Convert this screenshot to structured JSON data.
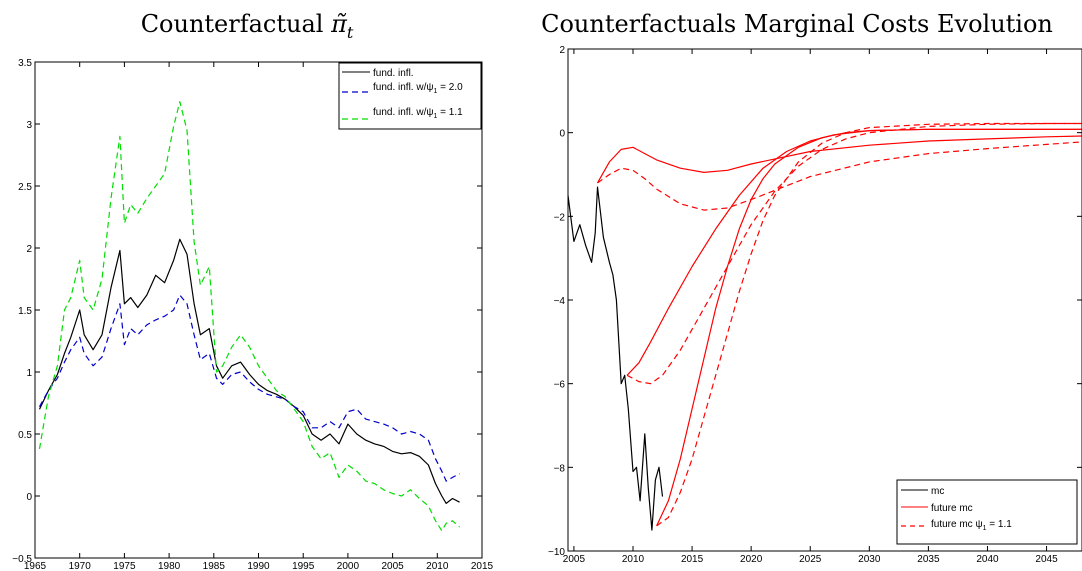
{
  "chart_data": [
    {
      "type": "line",
      "title": "Counterfactual π̃t",
      "xlabel": "",
      "ylabel": "",
      "xlim": [
        1965,
        2015
      ],
      "ylim": [
        -0.5,
        3.5
      ],
      "xticks": [
        1965,
        1970,
        1975,
        1980,
        1985,
        1990,
        1995,
        2000,
        2005,
        2010,
        2015
      ],
      "yticks": [
        -0.5,
        0,
        0.5,
        1,
        1.5,
        2,
        2.5,
        3,
        3.5
      ],
      "xtick_labels": [
        "1965",
        "1970",
        "1975",
        "1980",
        "1985",
        "1990",
        "1995",
        "2000",
        "2005",
        "2010",
        "2015"
      ],
      "ytick_labels": [
        "−0.5",
        "0",
        "0.5",
        "1",
        "1.5",
        "2",
        "2.5",
        "3",
        "3.5"
      ],
      "grid": false,
      "legend_position": "top-right",
      "series": [
        {
          "name": "fund. infl.",
          "color": "#000000",
          "dash": "solid",
          "x": [
            1965.5,
            1966.5,
            1967.5,
            1968.3,
            1969,
            1970,
            1970.5,
            1971.5,
            1972.5,
            1973.5,
            1974.5,
            1975,
            1975.7,
            1976.5,
            1977.5,
            1978.5,
            1979.5,
            1980.5,
            1981.2,
            1982,
            1982.8,
            1983.5,
            1984.5,
            1985.3,
            1986,
            1987,
            1988,
            1989,
            1990,
            1991,
            1992,
            1993,
            1994,
            1995,
            1996,
            1997,
            1998,
            1999,
            2000,
            2001,
            2002,
            2003,
            2004,
            2005,
            2006,
            2007,
            2008,
            2009,
            2009.8,
            2010.5,
            2011,
            2011.7,
            2012.5
          ],
          "y": [
            0.7,
            0.85,
            0.98,
            1.15,
            1.28,
            1.5,
            1.3,
            1.18,
            1.3,
            1.68,
            1.98,
            1.55,
            1.6,
            1.52,
            1.62,
            1.78,
            1.72,
            1.9,
            2.07,
            1.95,
            1.55,
            1.3,
            1.35,
            1.05,
            0.95,
            1.05,
            1.08,
            0.98,
            0.9,
            0.85,
            0.82,
            0.78,
            0.72,
            0.65,
            0.5,
            0.45,
            0.5,
            0.42,
            0.58,
            0.5,
            0.45,
            0.42,
            0.4,
            0.36,
            0.34,
            0.35,
            0.32,
            0.25,
            0.1,
            0.0,
            -0.06,
            -0.02,
            -0.05
          ]
        },
        {
          "name": "fund. infl. w/ψ1 = 2.0",
          "color": "#0000cc",
          "dash": "dashed",
          "x": [
            1965.5,
            1966.5,
            1967.5,
            1968.3,
            1969,
            1970,
            1970.5,
            1971.5,
            1972.5,
            1973.5,
            1974.5,
            1975,
            1975.7,
            1976.5,
            1977.5,
            1978.5,
            1979.5,
            1980.5,
            1981.2,
            1982,
            1982.8,
            1983.5,
            1984.5,
            1985.3,
            1986,
            1987,
            1988,
            1989,
            1990,
            1991,
            1992,
            1993,
            1994,
            1995,
            1996,
            1997,
            1998,
            1999,
            2000,
            2001,
            2002,
            2003,
            2004,
            2005,
            2006,
            2007,
            2008,
            2009,
            2009.8,
            2010.5,
            2011,
            2011.7,
            2012.5
          ],
          "y": [
            0.72,
            0.85,
            0.95,
            1.08,
            1.18,
            1.28,
            1.15,
            1.05,
            1.12,
            1.35,
            1.55,
            1.22,
            1.35,
            1.3,
            1.38,
            1.42,
            1.45,
            1.5,
            1.62,
            1.55,
            1.3,
            1.1,
            1.15,
            0.95,
            0.9,
            0.98,
            1.0,
            0.92,
            0.86,
            0.82,
            0.8,
            0.78,
            0.72,
            0.68,
            0.55,
            0.55,
            0.6,
            0.55,
            0.68,
            0.7,
            0.62,
            0.6,
            0.58,
            0.55,
            0.5,
            0.52,
            0.5,
            0.45,
            0.3,
            0.2,
            0.12,
            0.15,
            0.18
          ]
        },
        {
          "name": "fund. infl. w/ψ1 = 1.1",
          "color": "#00dd00",
          "dash": "dashed",
          "x": [
            1965.5,
            1966.5,
            1967.5,
            1968.3,
            1969,
            1970,
            1970.5,
            1971.5,
            1972.5,
            1973.5,
            1974.5,
            1975,
            1975.7,
            1976.5,
            1977.5,
            1978.5,
            1979.5,
            1980.5,
            1981.2,
            1982,
            1982.8,
            1983.5,
            1984.5,
            1985.3,
            1986,
            1987,
            1988,
            1989,
            1990,
            1991,
            1992,
            1993,
            1994,
            1995,
            1996,
            1997,
            1998,
            1999,
            2000,
            2001,
            2002,
            2003,
            2004,
            2005,
            2006,
            2007,
            2008,
            2009,
            2009.8,
            2010.5,
            2011,
            2011.7,
            2012.5
          ],
          "y": [
            0.38,
            0.8,
            1.05,
            1.5,
            1.6,
            1.9,
            1.6,
            1.5,
            1.75,
            2.4,
            2.9,
            2.2,
            2.35,
            2.28,
            2.4,
            2.5,
            2.6,
            2.98,
            3.18,
            2.95,
            2.05,
            1.7,
            1.85,
            1.0,
            1.05,
            1.2,
            1.3,
            1.2,
            1.05,
            0.95,
            0.85,
            0.8,
            0.7,
            0.6,
            0.4,
            0.3,
            0.35,
            0.15,
            0.25,
            0.2,
            0.12,
            0.1,
            0.05,
            0.02,
            0.0,
            0.05,
            -0.02,
            -0.08,
            -0.2,
            -0.28,
            -0.22,
            -0.2,
            -0.25
          ]
        }
      ]
    },
    {
      "type": "line",
      "title": "Counterfactuals Marginal Costs Evolution",
      "xlabel": "",
      "ylabel": "",
      "xlim": [
        2004.5,
        2048
      ],
      "ylim": [
        -10,
        2
      ],
      "xticks": [
        2005,
        2010,
        2015,
        2020,
        2025,
        2030,
        2035,
        2040,
        2045
      ],
      "yticks": [
        -10,
        -8,
        -6,
        -4,
        -2,
        0,
        2
      ],
      "xtick_labels": [
        "2005",
        "2010",
        "2015",
        "2020",
        "2025",
        "2030",
        "2035",
        "2040",
        "2045"
      ],
      "ytick_labels": [
        "−10",
        "−8",
        "−6",
        "−4",
        "−2",
        "0",
        "2"
      ],
      "grid": false,
      "legend_position": "bottom-right",
      "legend": [
        {
          "name": "mc",
          "color": "#000000",
          "dash": "solid"
        },
        {
          "name": "future mc",
          "color": "#ff0000",
          "dash": "solid"
        },
        {
          "name": "future mc ψ1 = 1.1",
          "color": "#ff0000",
          "dash": "dashed"
        }
      ],
      "series": [
        {
          "name": "mc",
          "color": "#000000",
          "dash": "solid",
          "x": [
            2004.5,
            2005,
            2005.5,
            2006,
            2006.5,
            2006.8,
            2007,
            2007.5,
            2008,
            2008.3,
            2008.6,
            2009,
            2009.3,
            2009.6,
            2010,
            2010.3,
            2010.6,
            2011,
            2011.3,
            2011.6,
            2011.9,
            2012.2,
            2012.5
          ],
          "y": [
            -1.5,
            -2.6,
            -2.2,
            -2.7,
            -3.1,
            -2.4,
            -1.3,
            -2.5,
            -3.1,
            -3.4,
            -4.0,
            -6.0,
            -5.8,
            -6.6,
            -8.1,
            -8.0,
            -8.8,
            -7.2,
            -8.5,
            -9.5,
            -8.3,
            -8.0,
            -8.7
          ]
        },
        {
          "name": "",
          "color": "#ff0000",
          "dash": "solid",
          "x": [
            2007,
            2008,
            2009,
            2010,
            2011,
            2012,
            2014,
            2016,
            2018,
            2020,
            2025,
            2030,
            2035,
            2040,
            2045,
            2048
          ],
          "y": [
            -1.2,
            -0.7,
            -0.4,
            -0.35,
            -0.5,
            -0.65,
            -0.85,
            -0.95,
            -0.9,
            -0.75,
            -0.45,
            -0.3,
            -0.2,
            -0.15,
            -0.1,
            -0.08
          ]
        },
        {
          "name": "",
          "color": "#ff0000",
          "dash": "dashed",
          "x": [
            2007,
            2008,
            2009,
            2010,
            2011,
            2012,
            2014,
            2016,
            2018,
            2020,
            2025,
            2030,
            2035,
            2040,
            2045,
            2048
          ],
          "y": [
            -1.2,
            -1.0,
            -0.85,
            -0.9,
            -1.1,
            -1.35,
            -1.7,
            -1.85,
            -1.8,
            -1.6,
            -1.05,
            -0.7,
            -0.5,
            -0.38,
            -0.28,
            -0.22
          ]
        },
        {
          "name": "",
          "color": "#ff0000",
          "dash": "solid",
          "x": [
            2009.5,
            2010.5,
            2011.5,
            2013,
            2015,
            2017,
            2019,
            2021,
            2023,
            2025,
            2027,
            2030,
            2035,
            2040,
            2045,
            2048
          ],
          "y": [
            -5.8,
            -5.5,
            -5.0,
            -4.2,
            -3.2,
            -2.3,
            -1.5,
            -0.85,
            -0.45,
            -0.2,
            -0.05,
            0.05,
            0.08,
            0.08,
            0.08,
            0.08
          ]
        },
        {
          "name": "",
          "color": "#ff0000",
          "dash": "dashed",
          "x": [
            2009.5,
            2010.5,
            2011.5,
            2012.5,
            2014,
            2016,
            2018,
            2020,
            2022,
            2024,
            2026,
            2028,
            2030,
            2035,
            2040,
            2045,
            2048
          ],
          "y": [
            -5.8,
            -5.95,
            -6.0,
            -5.8,
            -5.2,
            -4.2,
            -3.2,
            -2.2,
            -1.4,
            -0.8,
            -0.4,
            -0.15,
            0.0,
            0.15,
            0.2,
            0.22,
            0.22
          ]
        },
        {
          "name": "",
          "color": "#ff0000",
          "dash": "solid",
          "x": [
            2012,
            2013,
            2014,
            2015,
            2016,
            2017,
            2018,
            2019,
            2020,
            2021,
            2022,
            2024,
            2026,
            2028,
            2030,
            2035,
            2040,
            2045,
            2048
          ],
          "y": [
            -9.4,
            -8.8,
            -7.8,
            -6.6,
            -5.4,
            -4.2,
            -3.2,
            -2.3,
            -1.6,
            -1.1,
            -0.75,
            -0.35,
            -0.12,
            0.0,
            0.05,
            0.08,
            0.08,
            0.08,
            0.08
          ]
        },
        {
          "name": "",
          "color": "#ff0000",
          "dash": "dashed",
          "x": [
            2012,
            2013,
            2014,
            2015,
            2016,
            2017,
            2018,
            2019,
            2020,
            2021,
            2022,
            2024,
            2026,
            2028,
            2030,
            2035,
            2040,
            2045,
            2048
          ],
          "y": [
            -9.4,
            -9.2,
            -8.6,
            -7.8,
            -6.8,
            -5.8,
            -4.8,
            -3.8,
            -2.9,
            -2.1,
            -1.5,
            -0.7,
            -0.25,
            0.0,
            0.12,
            0.2,
            0.22,
            0.22,
            0.22
          ]
        }
      ]
    }
  ]
}
